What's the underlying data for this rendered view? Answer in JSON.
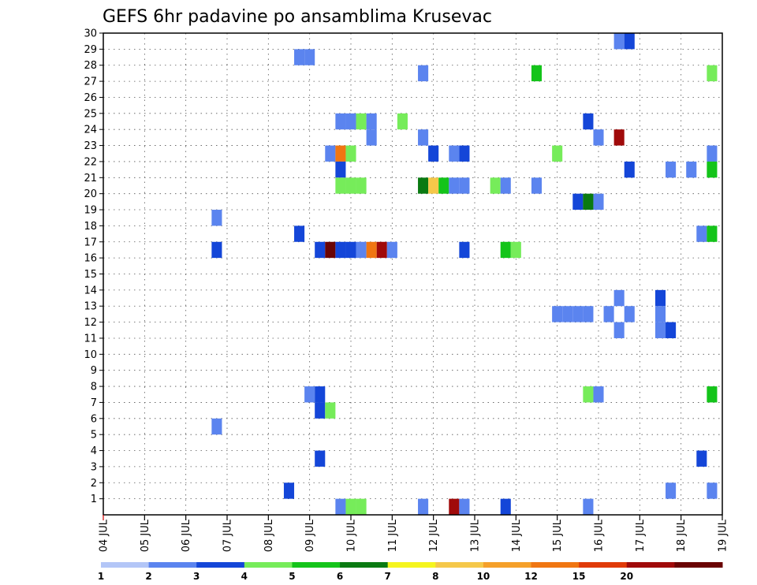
{
  "chart_data": {
    "type": "heatmap",
    "title": "GEFS 6hr padavine po ansamblima Krusevac",
    "xlabel": "",
    "ylabel": "",
    "x_tick_labels": [
      "04 JUL",
      "05 JUL",
      "06 JUL",
      "07 JUL",
      "08 JUL",
      "09 JUL",
      "10 JUL",
      "11 JUL",
      "12 JUL",
      "13 JUL",
      "14 JUL",
      "15 JUL",
      "16 JUL",
      "17 JUL",
      "18 JUL",
      "19 JUL"
    ],
    "y_tick_labels": [
      "1",
      "2",
      "3",
      "4",
      "5",
      "6",
      "7",
      "8",
      "9",
      "10",
      "11",
      "12",
      "13",
      "14",
      "15",
      "16",
      "17",
      "18",
      "19",
      "20",
      "21",
      "22",
      "23",
      "24",
      "25",
      "26",
      "27",
      "28",
      "29",
      "30"
    ],
    "x_range_days": [
      0,
      15
    ],
    "y_range": [
      0,
      30
    ],
    "time_step_hours": 6,
    "grid": true,
    "colorbar": {
      "labels": [
        "1",
        "2",
        "3",
        "4",
        "5",
        "6",
        "7",
        "8",
        "10",
        "12",
        "15",
        "20"
      ],
      "colors": [
        "#b3c6f7",
        "#5b84ef",
        "#1446d8",
        "#76ec5a",
        "#14c41a",
        "#0a7a12",
        "#f5f51e",
        "#f5c84a",
        "#f5a02a",
        "#f07612",
        "#e03a08",
        "#a00a0a",
        "#6a0404"
      ]
    },
    "cells": [
      {
        "x": 12.5,
        "y": 30,
        "c": 1
      },
      {
        "x": 12.75,
        "y": 30,
        "c": 2
      },
      {
        "x": 4.75,
        "y": 29,
        "c": 1
      },
      {
        "x": 5.0,
        "y": 29,
        "c": 1
      },
      {
        "x": 7.75,
        "y": 28,
        "c": 1
      },
      {
        "x": 10.5,
        "y": 28,
        "c": 4
      },
      {
        "x": 14.75,
        "y": 28,
        "c": 3
      },
      {
        "x": 5.75,
        "y": 25,
        "c": 1
      },
      {
        "x": 6.0,
        "y": 25,
        "c": 1
      },
      {
        "x": 6.25,
        "y": 25,
        "c": 3
      },
      {
        "x": 6.5,
        "y": 25,
        "c": 1
      },
      {
        "x": 7.25,
        "y": 25,
        "c": 3
      },
      {
        "x": 11.75,
        "y": 25,
        "c": 2
      },
      {
        "x": 6.5,
        "y": 24,
        "c": 1
      },
      {
        "x": 7.75,
        "y": 24,
        "c": 1
      },
      {
        "x": 12.0,
        "y": 24,
        "c": 1
      },
      {
        "x": 12.5,
        "y": 24,
        "c": 11
      },
      {
        "x": 5.5,
        "y": 23,
        "c": 1
      },
      {
        "x": 5.75,
        "y": 23,
        "c": 9
      },
      {
        "x": 6.0,
        "y": 23,
        "c": 3
      },
      {
        "x": 8.0,
        "y": 23,
        "c": 2
      },
      {
        "x": 8.5,
        "y": 23,
        "c": 1
      },
      {
        "x": 8.75,
        "y": 23,
        "c": 2
      },
      {
        "x": 11.0,
        "y": 23,
        "c": 3
      },
      {
        "x": 14.75,
        "y": 23,
        "c": 1
      },
      {
        "x": 5.75,
        "y": 22,
        "c": 2
      },
      {
        "x": 12.75,
        "y": 22,
        "c": 2
      },
      {
        "x": 13.75,
        "y": 22,
        "c": 1
      },
      {
        "x": 14.25,
        "y": 22,
        "c": 1
      },
      {
        "x": 14.75,
        "y": 22,
        "c": 4
      },
      {
        "x": 5.75,
        "y": 21,
        "c": 3
      },
      {
        "x": 6.0,
        "y": 21,
        "c": 3
      },
      {
        "x": 6.25,
        "y": 21,
        "c": 3
      },
      {
        "x": 7.75,
        "y": 21,
        "c": 5
      },
      {
        "x": 8.0,
        "y": 21,
        "c": 7
      },
      {
        "x": 8.25,
        "y": 21,
        "c": 4
      },
      {
        "x": 8.5,
        "y": 21,
        "c": 1
      },
      {
        "x": 8.75,
        "y": 21,
        "c": 1
      },
      {
        "x": 9.5,
        "y": 21,
        "c": 3
      },
      {
        "x": 9.75,
        "y": 21,
        "c": 1
      },
      {
        "x": 10.5,
        "y": 21,
        "c": 1
      },
      {
        "x": 11.5,
        "y": 20,
        "c": 2
      },
      {
        "x": 11.75,
        "y": 20,
        "c": 5
      },
      {
        "x": 12.0,
        "y": 20,
        "c": 1
      },
      {
        "x": 2.75,
        "y": 19,
        "c": 1
      },
      {
        "x": 4.75,
        "y": 18,
        "c": 2
      },
      {
        "x": 14.5,
        "y": 18,
        "c": 1
      },
      {
        "x": 14.75,
        "y": 18,
        "c": 4
      },
      {
        "x": 2.75,
        "y": 17,
        "c": 2
      },
      {
        "x": 5.25,
        "y": 17,
        "c": 2
      },
      {
        "x": 5.5,
        "y": 17,
        "c": 12
      },
      {
        "x": 5.75,
        "y": 17,
        "c": 2
      },
      {
        "x": 6.0,
        "y": 17,
        "c": 2
      },
      {
        "x": 6.25,
        "y": 17,
        "c": 1
      },
      {
        "x": 6.5,
        "y": 17,
        "c": 9
      },
      {
        "x": 6.75,
        "y": 17,
        "c": 11
      },
      {
        "x": 7.0,
        "y": 17,
        "c": 1
      },
      {
        "x": 8.75,
        "y": 17,
        "c": 2
      },
      {
        "x": 9.75,
        "y": 17,
        "c": 4
      },
      {
        "x": 10.0,
        "y": 17,
        "c": 3
      },
      {
        "x": 12.5,
        "y": 14,
        "c": 1
      },
      {
        "x": 13.5,
        "y": 14,
        "c": 2
      },
      {
        "x": 11.0,
        "y": 13,
        "c": 1
      },
      {
        "x": 11.25,
        "y": 13,
        "c": 1
      },
      {
        "x": 11.5,
        "y": 13,
        "c": 1
      },
      {
        "x": 11.75,
        "y": 13,
        "c": 1
      },
      {
        "x": 12.25,
        "y": 13,
        "c": 1
      },
      {
        "x": 12.75,
        "y": 13,
        "c": 1
      },
      {
        "x": 13.5,
        "y": 13,
        "c": 1
      },
      {
        "x": 12.5,
        "y": 12,
        "c": 1
      },
      {
        "x": 13.5,
        "y": 12,
        "c": 1
      },
      {
        "x": 13.75,
        "y": 12,
        "c": 2
      },
      {
        "x": 5.0,
        "y": 8,
        "c": 1
      },
      {
        "x": 5.25,
        "y": 8,
        "c": 2
      },
      {
        "x": 11.75,
        "y": 8,
        "c": 3
      },
      {
        "x": 12.0,
        "y": 8,
        "c": 1
      },
      {
        "x": 14.75,
        "y": 8,
        "c": 4
      },
      {
        "x": 5.25,
        "y": 7,
        "c": 2
      },
      {
        "x": 5.5,
        "y": 7,
        "c": 3
      },
      {
        "x": 2.75,
        "y": 6,
        "c": 1
      },
      {
        "x": 5.25,
        "y": 4,
        "c": 2
      },
      {
        "x": 14.5,
        "y": 4,
        "c": 2
      },
      {
        "x": 4.5,
        "y": 2,
        "c": 2
      },
      {
        "x": 13.75,
        "y": 2,
        "c": 1
      },
      {
        "x": 14.75,
        "y": 2,
        "c": 1
      },
      {
        "x": 5.75,
        "y": 1,
        "c": 1
      },
      {
        "x": 6.0,
        "y": 1,
        "c": 3
      },
      {
        "x": 6.25,
        "y": 1,
        "c": 3
      },
      {
        "x": 7.75,
        "y": 1,
        "c": 1
      },
      {
        "x": 8.5,
        "y": 1,
        "c": 11
      },
      {
        "x": 8.75,
        "y": 1,
        "c": 1
      },
      {
        "x": 9.75,
        "y": 1,
        "c": 2
      },
      {
        "x": 11.75,
        "y": 1,
        "c": 1
      }
    ]
  }
}
